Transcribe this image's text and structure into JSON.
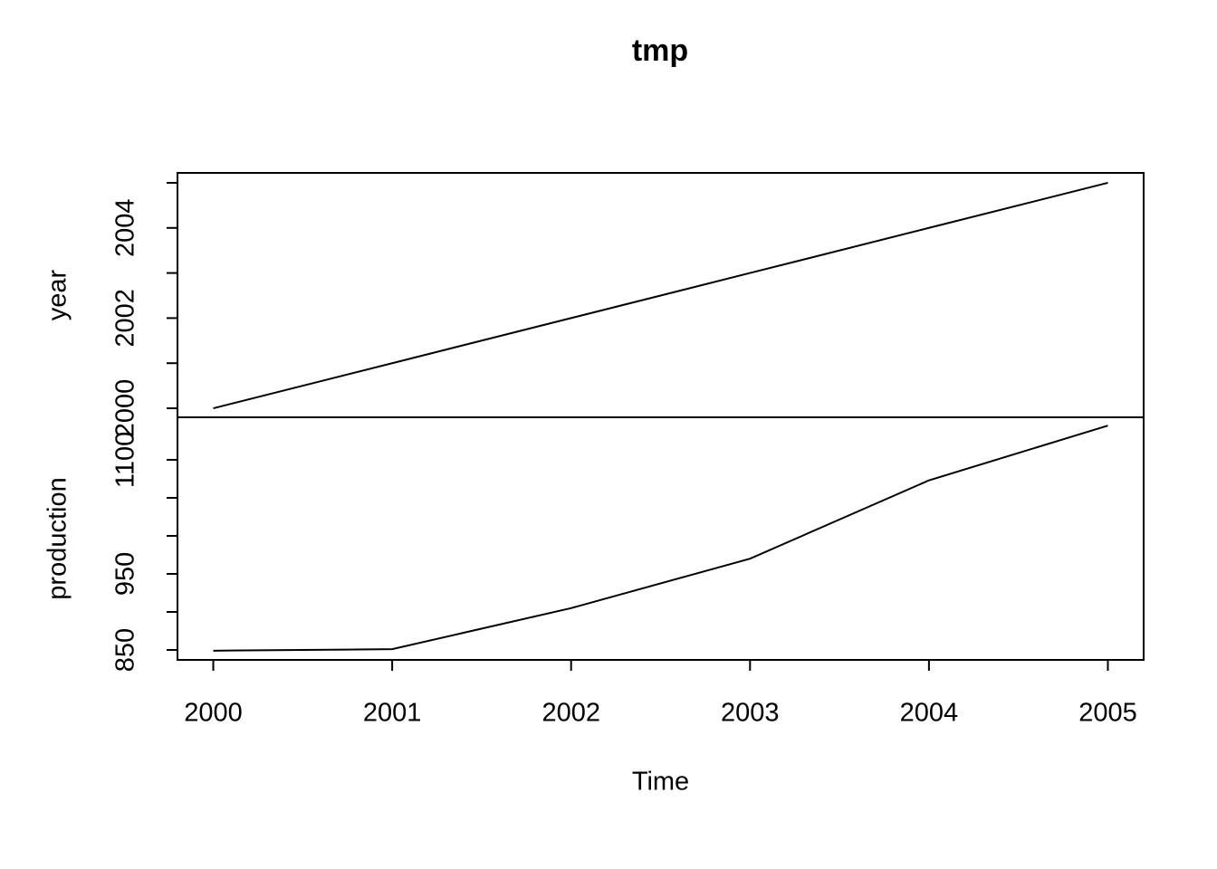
{
  "chart_data": [
    {
      "type": "line",
      "title": "tmp",
      "ylabel": "year",
      "x": [
        2000,
        2001,
        2002,
        2003,
        2004,
        2005
      ],
      "series": [
        {
          "name": "year",
          "color": "#000000",
          "values": [
            2000,
            2001,
            2002,
            2003,
            2004,
            2005
          ]
        }
      ],
      "xlim": [
        1999.8,
        2005.2
      ],
      "ylim": [
        1999.8,
        2005.22
      ],
      "yticks": [
        2000,
        2002,
        2004
      ],
      "yminorticks": [
        2001,
        2003,
        2005
      ]
    },
    {
      "type": "line",
      "ylabel": "production",
      "xlabel": "Time",
      "x": [
        2000,
        2001,
        2002,
        2003,
        2004,
        2005
      ],
      "series": [
        {
          "name": "production",
          "color": "#000000",
          "values": [
            849,
            851,
            905,
            970,
            1073,
            1145
          ]
        }
      ],
      "xlim": [
        1999.8,
        2005.2
      ],
      "xticks": [
        2000,
        2001,
        2002,
        2003,
        2004,
        2005
      ],
      "ylim": [
        836.9,
        1155.9
      ],
      "yticks": [
        850,
        950,
        1100
      ],
      "yminorticks": [
        900,
        1000,
        1050
      ]
    }
  ]
}
